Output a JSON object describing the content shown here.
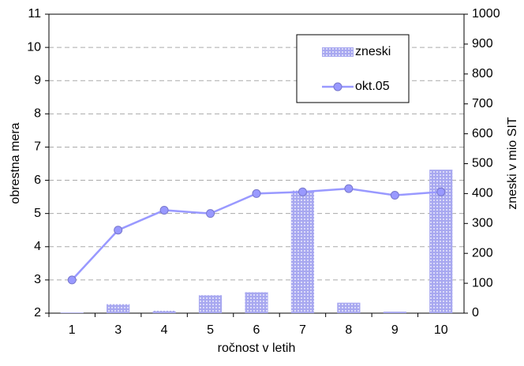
{
  "chart_data": {
    "type": "bar_line",
    "x_label": "ročnost v letih",
    "y_label": "obrestna mera",
    "y2_label": "zneski v mio SIT",
    "categories": [
      "1",
      "3",
      "4",
      "5",
      "6",
      "7",
      "8",
      "9",
      "10"
    ],
    "series": [
      {
        "name": "zneski",
        "type": "bar",
        "axis": "y2",
        "color": "#a8a8f0",
        "values": [
          2,
          30,
          8,
          60,
          70,
          410,
          35,
          5,
          480
        ]
      },
      {
        "name": "okt.05",
        "type": "line",
        "axis": "y",
        "color": "#9999ff",
        "values": [
          3.0,
          4.5,
          5.1,
          5.0,
          5.6,
          5.65,
          5.75,
          5.55,
          5.65
        ]
      }
    ],
    "ylim": [
      2,
      11
    ],
    "yticks": [
      2,
      3,
      4,
      5,
      6,
      7,
      8,
      9,
      10,
      11
    ],
    "y2lim": [
      0,
      1000
    ],
    "y2ticks": [
      0,
      100,
      200,
      300,
      400,
      500,
      600,
      700,
      800,
      900,
      1000
    ],
    "grid": true,
    "legend": "upper right"
  }
}
